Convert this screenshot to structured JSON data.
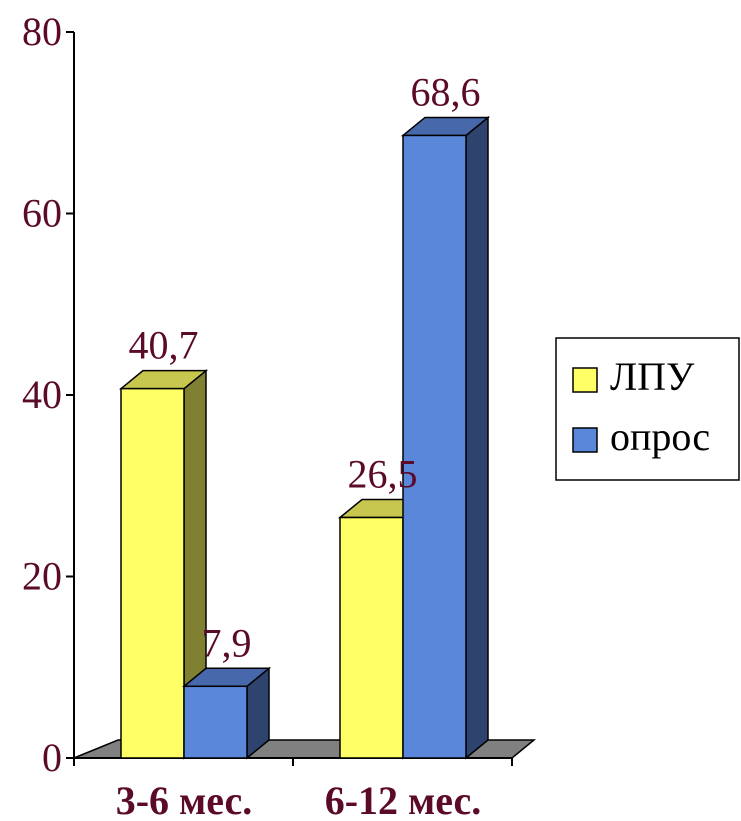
{
  "chart_data": {
    "type": "bar",
    "categories": [
      "3-6 мес.",
      "6-12 мес."
    ],
    "series": [
      {
        "name": "ЛПУ",
        "values": [
          40.7,
          26.5
        ],
        "labels": [
          "40,7",
          "26,5"
        ],
        "color": "#ffff66"
      },
      {
        "name": "опрос",
        "values": [
          7.9,
          68.6
        ],
        "labels": [
          "7,9",
          "68,6"
        ],
        "color": "#5b87db"
      }
    ],
    "ylim": [
      0,
      80
    ],
    "yticks": [
      0,
      20,
      40,
      60,
      80
    ],
    "ytick_labels": [
      "0",
      "20",
      "40",
      "60",
      "80"
    ],
    "legend": "right",
    "grid": false,
    "style": "3d"
  }
}
